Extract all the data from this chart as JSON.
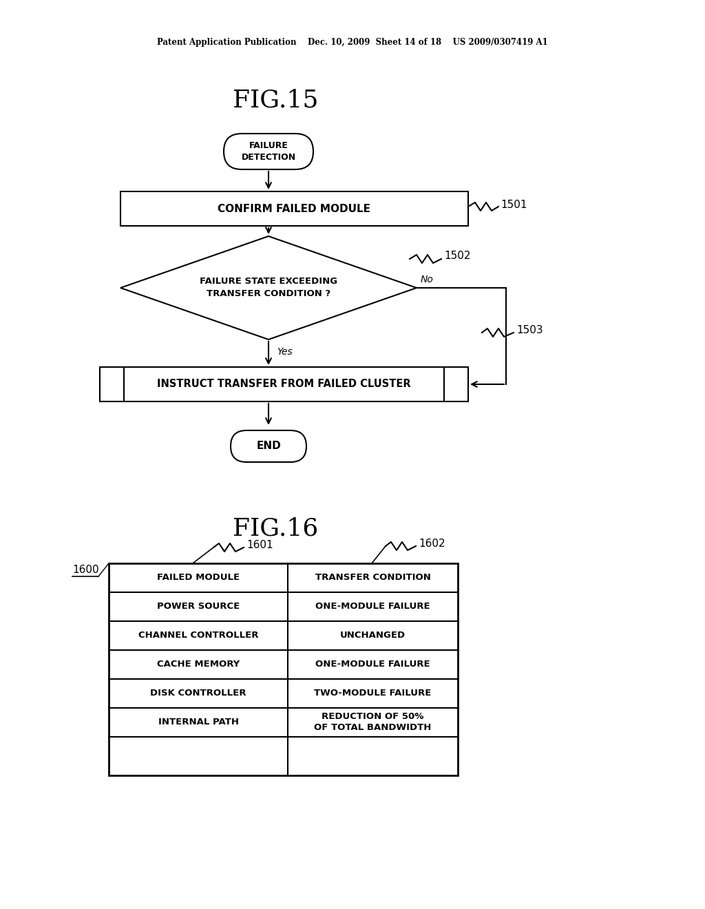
{
  "background_color": "#ffffff",
  "header_text": "Patent Application Publication    Dec. 10, 2009  Sheet 14 of 18    US 2009/0307419 A1",
  "fig15_title": "FIG.15",
  "fig16_title": "FIG.16",
  "flowchart": {
    "start_label": "FAILURE\nDETECTION",
    "box1_label": "CONFIRM FAILED MODULE",
    "box1_ref": "1501",
    "diamond_label": "FAILURE STATE EXCEEDING\nTRANSFER CONDITION ?",
    "diamond_ref": "1502",
    "box2_label": "INSTRUCT TRANSFER FROM FAILED CLUSTER",
    "box2_ref": "1503",
    "end_label": "END",
    "yes_label": "Yes",
    "no_label": "No"
  },
  "table": {
    "ref_outer": "1600",
    "ref_col1": "1601",
    "ref_col2": "1602",
    "headers": [
      "FAILED MODULE",
      "TRANSFER CONDITION"
    ],
    "rows": [
      [
        "POWER SOURCE",
        "ONE-MODULE FAILURE"
      ],
      [
        "CHANNEL CONTROLLER",
        "UNCHANGED"
      ],
      [
        "CACHE MEMORY",
        "ONE-MODULE FAILURE"
      ],
      [
        "DISK CONTROLLER",
        "TWO-MODULE FAILURE"
      ],
      [
        "INTERNAL PATH",
        "REDUCTION OF 50%\nOF TOTAL BANDWIDTH"
      ]
    ]
  }
}
